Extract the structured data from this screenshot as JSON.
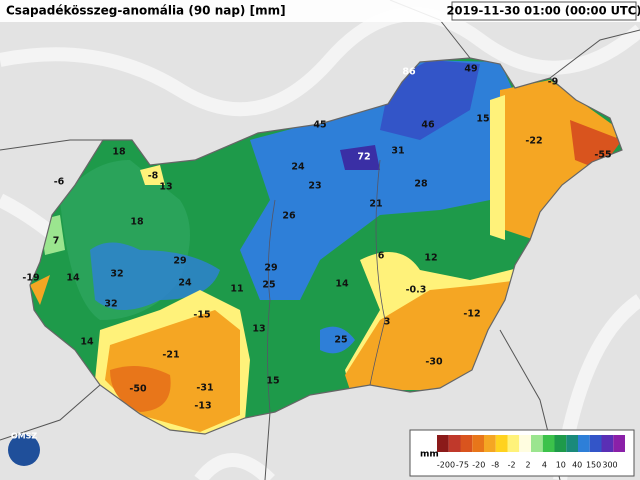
{
  "header": {
    "title": "Csapadékösszeg-anomália (90 nap) [mm]",
    "timestamp": "2019-11-30 01:00 (00:00 UTC)"
  },
  "stations": [
    86,
    49,
    -9,
    45,
    46,
    15,
    -22,
    -55,
    18,
    -8,
    -6,
    13,
    24,
    72,
    31,
    23,
    28,
    21,
    26,
    18,
    7,
    6,
    12,
    29,
    29,
    -19,
    14,
    32,
    24,
    25,
    11,
    14,
    -0.3,
    32,
    -15,
    -12,
    13,
    3,
    25,
    14,
    -21,
    -30,
    15,
    -50,
    -31,
    -13
  ],
  "legend": {
    "unit": "mm",
    "labels": [
      -200,
      -75,
      -20,
      -8,
      -2,
      2,
      4,
      10,
      40,
      150,
      300
    ],
    "colors": [
      "#8b1a1a",
      "#c0392b",
      "#d9541e",
      "#e8761a",
      "#f5a623",
      "#ffd21f",
      "#fff27a",
      "#fffde0",
      "#9be58f",
      "#3cc24b",
      "#1e9a4a",
      "#1a8a7a",
      "#2e7fd8",
      "#3355c8",
      "#5a2fb5",
      "#8a20a8"
    ]
  },
  "logo": "OMSZ"
}
